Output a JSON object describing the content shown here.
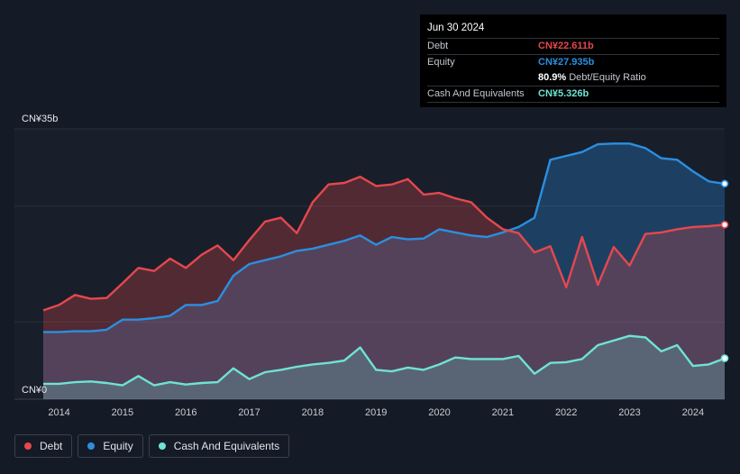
{
  "tooltip": {
    "date": "Jun 30 2024",
    "debt_label": "Debt",
    "debt_value": "CN¥22.611b",
    "equity_label": "Equity",
    "equity_value": "CN¥27.935b",
    "ratio_value": "80.9%",
    "ratio_label": "Debt/Equity Ratio",
    "cash_label": "Cash And Equivalents",
    "cash_value": "CN¥5.326b"
  },
  "colors": {
    "debt": "#e5484d",
    "equity": "#2b8fe0",
    "cash": "#6fe3d3"
  },
  "legend": [
    {
      "label": "Debt",
      "color": "#e5484d"
    },
    {
      "label": "Equity",
      "color": "#2b8fe0"
    },
    {
      "label": "Cash And Equivalents",
      "color": "#6fe3d3"
    }
  ],
  "chart_data": {
    "type": "area",
    "title": "",
    "ylim": [
      0,
      35
    ],
    "y_unit": "CN¥ billions",
    "xlim": [
      2013.75,
      2024.5
    ],
    "y_tick_labels": [
      {
        "value": 35,
        "label": "CN¥35b"
      },
      {
        "value": 0,
        "label": "CN¥0"
      }
    ],
    "x_ticks": [
      {
        "value": 2014,
        "label": "2014"
      },
      {
        "value": 2015,
        "label": "2015"
      },
      {
        "value": 2016,
        "label": "2016"
      },
      {
        "value": 2017,
        "label": "2017"
      },
      {
        "value": 2018,
        "label": "2018"
      },
      {
        "value": 2019,
        "label": "2019"
      },
      {
        "value": 2020,
        "label": "2020"
      },
      {
        "value": 2021,
        "label": "2021"
      },
      {
        "value": 2022,
        "label": "2022"
      },
      {
        "value": 2023,
        "label": "2023"
      },
      {
        "value": 2024,
        "label": "2024"
      }
    ],
    "series": [
      {
        "name": "Debt",
        "x": [
          2013.75,
          2014.0,
          2014.25,
          2014.5,
          2014.75,
          2015.0,
          2015.25,
          2015.5,
          2015.75,
          2016.0,
          2016.25,
          2016.5,
          2016.75,
          2017.0,
          2017.25,
          2017.5,
          2017.75,
          2018.0,
          2018.25,
          2018.5,
          2018.75,
          2019.0,
          2019.25,
          2019.5,
          2019.75,
          2020.0,
          2020.25,
          2020.5,
          2020.75,
          2021.0,
          2021.25,
          2021.5,
          2021.75,
          2022.0,
          2022.25,
          2022.5,
          2022.75,
          2023.0,
          2023.25,
          2023.5,
          2023.75,
          2024.0,
          2024.25,
          2024.5
        ],
        "values": [
          11.5,
          12.2,
          13.5,
          13.0,
          13.1,
          15.0,
          17.0,
          16.6,
          18.2,
          17.0,
          18.7,
          19.9,
          18.0,
          20.6,
          23.0,
          23.5,
          21.5,
          25.5,
          27.8,
          28.0,
          28.8,
          27.6,
          27.8,
          28.5,
          26.5,
          26.7,
          26.0,
          25.5,
          23.5,
          22.0,
          21.5,
          19.0,
          19.8,
          14.5,
          21.0,
          14.8,
          19.7,
          17.3,
          21.4,
          21.6,
          22.0,
          22.3,
          22.4,
          22.6
        ]
      },
      {
        "name": "Equity",
        "x": [
          2013.75,
          2014.0,
          2014.25,
          2014.5,
          2014.75,
          2015.0,
          2015.25,
          2015.5,
          2015.75,
          2016.0,
          2016.25,
          2016.5,
          2016.75,
          2017.0,
          2017.25,
          2017.5,
          2017.75,
          2018.0,
          2018.25,
          2018.5,
          2018.75,
          2019.0,
          2019.25,
          2019.5,
          2019.75,
          2020.0,
          2020.25,
          2020.5,
          2020.75,
          2021.0,
          2021.25,
          2021.5,
          2021.75,
          2022.0,
          2022.25,
          2022.5,
          2022.75,
          2023.0,
          2023.25,
          2023.5,
          2023.75,
          2024.0,
          2024.25,
          2024.5
        ],
        "values": [
          8.7,
          8.7,
          8.8,
          8.8,
          9.0,
          10.3,
          10.3,
          10.5,
          10.8,
          12.2,
          12.2,
          12.7,
          16.0,
          17.5,
          18.0,
          18.5,
          19.2,
          19.5,
          20.0,
          20.5,
          21.2,
          20.0,
          21.0,
          20.7,
          20.8,
          22.0,
          21.6,
          21.2,
          21.0,
          21.6,
          22.3,
          23.5,
          31.0,
          31.5,
          32.0,
          33.0,
          33.1,
          33.1,
          32.5,
          31.2,
          31.0,
          29.5,
          28.2,
          27.9
        ]
      },
      {
        "name": "Cash And Equivalents",
        "x": [
          2013.75,
          2014.0,
          2014.25,
          2014.5,
          2014.75,
          2015.0,
          2015.25,
          2015.5,
          2015.75,
          2016.0,
          2016.25,
          2016.5,
          2016.75,
          2017.0,
          2017.25,
          2017.5,
          2017.75,
          2018.0,
          2018.25,
          2018.5,
          2018.75,
          2019.0,
          2019.25,
          2019.5,
          2019.75,
          2020.0,
          2020.25,
          2020.5,
          2020.75,
          2021.0,
          2021.25,
          2021.5,
          2021.75,
          2022.0,
          2022.25,
          2022.5,
          2022.75,
          2023.0,
          2023.25,
          2023.5,
          2023.75,
          2024.0,
          2024.25,
          2024.5
        ],
        "values": [
          2.0,
          2.0,
          2.2,
          2.3,
          2.1,
          1.8,
          3.0,
          1.8,
          2.2,
          1.9,
          2.1,
          2.2,
          4.0,
          2.6,
          3.5,
          3.8,
          4.2,
          4.5,
          4.7,
          5.0,
          6.7,
          3.8,
          3.6,
          4.1,
          3.8,
          4.5,
          5.4,
          5.2,
          5.2,
          5.2,
          5.6,
          3.3,
          4.7,
          4.8,
          5.2,
          7.0,
          7.6,
          8.2,
          8.0,
          6.2,
          7.0,
          4.3,
          4.5,
          5.3
        ]
      }
    ]
  }
}
